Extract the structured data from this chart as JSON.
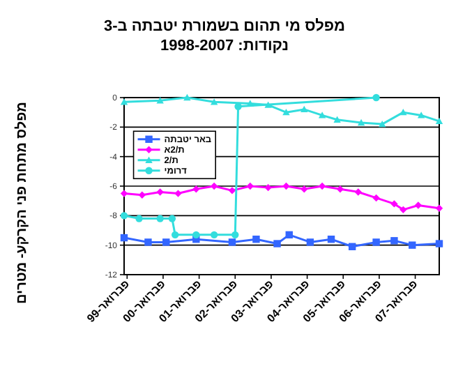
{
  "chart_data": {
    "type": "line",
    "title": "מפלס מי תהום בשמורת יטבתה ב-3 נקודות: 1998-2007",
    "ylabel": "מפלס מתחת פני הקרקע- מטרים",
    "xlim": [
      "1999-01",
      "2007-10"
    ],
    "xticks": [
      {
        "value": "1999-02",
        "label": "פברואר-99"
      },
      {
        "value": "2000-02",
        "label": "פברואר-00"
      },
      {
        "value": "2001-02",
        "label": "פברואר-01"
      },
      {
        "value": "2002-02",
        "label": "פברואר-02"
      },
      {
        "value": "2003-02",
        "label": "פברואר-03"
      },
      {
        "value": "2004-02",
        "label": "פברואר-04"
      },
      {
        "value": "2005-02",
        "label": "פברואר-05"
      },
      {
        "value": "2006-02",
        "label": "פברואר-06"
      },
      {
        "value": "2007-02",
        "label": "פברואר-07"
      }
    ],
    "ylim": [
      -12,
      0
    ],
    "yticks": [
      -12,
      -10,
      -8,
      -6,
      -4,
      -2,
      0
    ],
    "grid": "y",
    "legend": "top left",
    "series": [
      {
        "name": "באר יטבתה",
        "color": "#3366ff",
        "marker": "square",
        "x": [
          "1999-01",
          "1999-09",
          "2000-03",
          "2001-01",
          "2002-01",
          "2002-09",
          "2003-04",
          "2003-08",
          "2004-03",
          "2004-10",
          "2005-05",
          "2006-01",
          "2006-07",
          "2007-01",
          "2007-10"
        ],
        "values": [
          -9.5,
          -9.8,
          -9.8,
          -9.6,
          -9.8,
          -9.6,
          -9.9,
          -9.3,
          -9.8,
          -9.6,
          -10.1,
          -9.8,
          -9.7,
          -10.0,
          -9.9
        ]
      },
      {
        "name": "ת/2א",
        "color": "#ff00ff",
        "marker": "diamond",
        "x": [
          "1999-01",
          "1999-07",
          "2000-01",
          "2000-07",
          "2001-01",
          "2001-07",
          "2002-01",
          "2002-07",
          "2003-01",
          "2003-07",
          "2004-01",
          "2004-07",
          "2005-01",
          "2005-07",
          "2006-01",
          "2006-07",
          "2006-10",
          "2007-03",
          "2007-10"
        ],
        "values": [
          -6.5,
          -6.6,
          -6.4,
          -6.5,
          -6.2,
          -6.0,
          -6.3,
          -6.0,
          -6.1,
          -6.0,
          -6.2,
          -6.0,
          -6.2,
          -6.4,
          -6.8,
          -7.2,
          -7.6,
          -7.3,
          -7.5
        ]
      },
      {
        "name": "ת/2",
        "color": "#33dddd",
        "marker": "triangle",
        "x": [
          "1999-01",
          "2000-01",
          "2000-10",
          "2001-07",
          "2002-07",
          "2003-01",
          "2003-07",
          "2004-01",
          "2004-07",
          "2004-12",
          "2005-08",
          "2006-03",
          "2006-10",
          "2007-04",
          "2007-10"
        ],
        "values": [
          -0.3,
          -0.2,
          0,
          -0.3,
          -0.4,
          -0.5,
          -1.0,
          -0.8,
          -1.2,
          -1.5,
          -1.7,
          -1.8,
          -1.0,
          -1.2,
          -1.6
        ]
      },
      {
        "name": "דרומי",
        "color": "#33dddd",
        "marker": "circle",
        "x": [
          "1999-01",
          "1999-06",
          "2000-01",
          "2000-05",
          "2000-06",
          "2001-01",
          "2001-07",
          "2002-02",
          "2002-03",
          "2006-01"
        ],
        "values": [
          -8.0,
          -8.2,
          -8.2,
          -8.2,
          -9.3,
          -9.3,
          -9.3,
          -9.3,
          -0.6,
          0
        ]
      }
    ]
  }
}
